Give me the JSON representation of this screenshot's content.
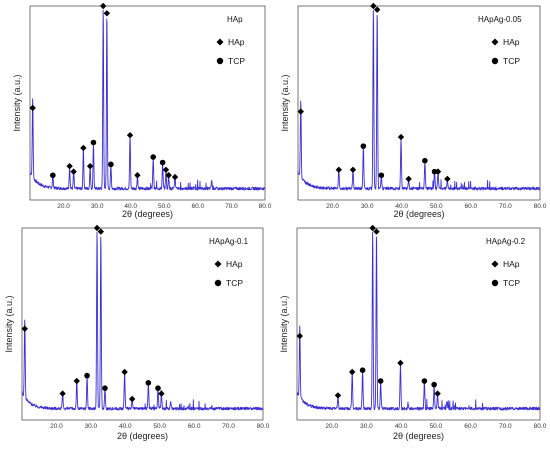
{
  "colors": {
    "pattern": "#3b2fd0",
    "frame": "#555555",
    "marker": "#000000"
  },
  "chart_data": [
    {
      "type": "line",
      "sample_label": "HAp",
      "xlabel": "2θ (degrees)",
      "ylabel": "Intensity (a.u.)",
      "xlim": [
        10,
        80
      ],
      "xticks": [
        20.0,
        30.0,
        40.0,
        50.0,
        60.0,
        70.0,
        80.0
      ],
      "tick_labels": [
        "20.0",
        "30.0",
        "40.0",
        "50.0",
        "60.0",
        "70.0",
        "80.0"
      ],
      "ylim": [
        0,
        100
      ],
      "legend": {
        "items": [
          {
            "symbol": "diamond",
            "label": "HAp"
          },
          {
            "symbol": "circle",
            "label": "TCP"
          }
        ]
      },
      "peaks": [
        {
          "x": 10.8,
          "y": 44,
          "phase": "HAp"
        },
        {
          "x": 16.8,
          "y": 7,
          "phase": "TCP"
        },
        {
          "x": 21.8,
          "y": 12,
          "phase": "HAp"
        },
        {
          "x": 23.0,
          "y": 9,
          "phase": "HAp"
        },
        {
          "x": 25.9,
          "y": 22,
          "phase": "HAp"
        },
        {
          "x": 27.9,
          "y": 12,
          "phase": "HAp"
        },
        {
          "x": 28.9,
          "y": 25,
          "phase": "TCP"
        },
        {
          "x": 31.8,
          "y": 100,
          "phase": "HAp"
        },
        {
          "x": 32.9,
          "y": 96,
          "phase": "HAp"
        },
        {
          "x": 34.1,
          "y": 13,
          "phase": "TCP"
        },
        {
          "x": 39.8,
          "y": 29,
          "phase": "HAp"
        },
        {
          "x": 42.0,
          "y": 7,
          "phase": "HAp"
        },
        {
          "x": 46.7,
          "y": 17,
          "phase": "TCP"
        },
        {
          "x": 49.5,
          "y": 14,
          "phase": "TCP"
        },
        {
          "x": 50.5,
          "y": 10,
          "phase": "HAp"
        },
        {
          "x": 51.3,
          "y": 7,
          "phase": "HAp"
        },
        {
          "x": 53.2,
          "y": 6,
          "phase": "HAp"
        },
        {
          "x": 64.1,
          "y": 4,
          "phase": "HAp"
        }
      ]
    },
    {
      "type": "line",
      "sample_label": "HApAg-0.05",
      "xlabel": "2θ (degrees)",
      "ylabel": "Intensity (a.u.)",
      "xlim": [
        10,
        80
      ],
      "xticks": [
        20.0,
        30.0,
        40.0,
        50.0,
        60.0,
        70.0,
        80.0
      ],
      "tick_labels": [
        "20.0",
        "30.0",
        "40.0",
        "50.0",
        "60.0",
        "70.0",
        "80.0"
      ],
      "ylim": [
        0,
        100
      ],
      "legend": {
        "items": [
          {
            "symbol": "diamond",
            "label": "HAp"
          },
          {
            "symbol": "circle",
            "label": "TCP"
          }
        ]
      },
      "peaks": [
        {
          "x": 10.8,
          "y": 42,
          "phase": "HAp"
        },
        {
          "x": 21.8,
          "y": 10,
          "phase": "HAp"
        },
        {
          "x": 25.9,
          "y": 10,
          "phase": "HAp"
        },
        {
          "x": 28.9,
          "y": 23,
          "phase": "TCP"
        },
        {
          "x": 31.8,
          "y": 100,
          "phase": "HAp"
        },
        {
          "x": 32.9,
          "y": 98,
          "phase": "HAp"
        },
        {
          "x": 34.1,
          "y": 7,
          "phase": "TCP"
        },
        {
          "x": 39.8,
          "y": 28,
          "phase": "HAp"
        },
        {
          "x": 42.0,
          "y": 5,
          "phase": "HAp"
        },
        {
          "x": 46.7,
          "y": 15,
          "phase": "TCP"
        },
        {
          "x": 49.5,
          "y": 9,
          "phase": "TCP"
        },
        {
          "x": 50.5,
          "y": 9,
          "phase": "HAp"
        },
        {
          "x": 53.2,
          "y": 5,
          "phase": "HAp"
        }
      ]
    },
    {
      "type": "line",
      "sample_label": "HApAg-0.1",
      "xlabel": "2θ (degrees)",
      "ylabel": "Intensity (a.u.)",
      "xlim": [
        10,
        80
      ],
      "xticks": [
        20.0,
        30.0,
        40.0,
        50.0,
        60.0,
        70.0,
        80.0
      ],
      "tick_labels": [
        "20.0",
        "30.0",
        "40.0",
        "50.0",
        "60.0",
        "70.0",
        "80.0"
      ],
      "ylim": [
        0,
        100
      ],
      "legend": {
        "items": [
          {
            "symbol": "diamond",
            "label": "HAp"
          },
          {
            "symbol": "circle",
            "label": "TCP"
          }
        ]
      },
      "peaks": [
        {
          "x": 10.8,
          "y": 44,
          "phase": "HAp"
        },
        {
          "x": 21.8,
          "y": 8,
          "phase": "HAp"
        },
        {
          "x": 25.9,
          "y": 15,
          "phase": "HAp"
        },
        {
          "x": 28.9,
          "y": 18,
          "phase": "TCP"
        },
        {
          "x": 31.8,
          "y": 100,
          "phase": "HAp"
        },
        {
          "x": 32.9,
          "y": 98,
          "phase": "HAp"
        },
        {
          "x": 34.1,
          "y": 11,
          "phase": "TCP"
        },
        {
          "x": 39.8,
          "y": 20,
          "phase": "HAp"
        },
        {
          "x": 42.0,
          "y": 5,
          "phase": "HAp"
        },
        {
          "x": 46.7,
          "y": 14,
          "phase": "TCP"
        },
        {
          "x": 49.5,
          "y": 11,
          "phase": "TCP"
        },
        {
          "x": 50.5,
          "y": 8,
          "phase": "HAp"
        },
        {
          "x": 53.2,
          "y": 4,
          "phase": "HAp"
        }
      ]
    },
    {
      "type": "line",
      "sample_label": "HApAg-0.2",
      "xlabel": "2θ (degrees)",
      "ylabel": "Intensity (a.u.)",
      "xlim": [
        10,
        80
      ],
      "xticks": [
        20.0,
        30.0,
        40.0,
        50.0,
        60.0,
        70.0,
        80.0
      ],
      "tick_labels": [
        "20.0",
        "30.0",
        "40.0",
        "50.0",
        "60.0",
        "70.0",
        "80.0"
      ],
      "ylim": [
        0,
        100
      ],
      "legend": {
        "items": [
          {
            "symbol": "diamond",
            "label": "HAp"
          },
          {
            "symbol": "circle",
            "label": "TCP"
          }
        ]
      },
      "peaks": [
        {
          "x": 10.8,
          "y": 40,
          "phase": "HAp"
        },
        {
          "x": 21.8,
          "y": 7,
          "phase": "HAp"
        },
        {
          "x": 25.9,
          "y": 20,
          "phase": "HAp"
        },
        {
          "x": 28.9,
          "y": 21,
          "phase": "TCP"
        },
        {
          "x": 31.8,
          "y": 100,
          "phase": "HAp"
        },
        {
          "x": 32.9,
          "y": 98,
          "phase": "HAp"
        },
        {
          "x": 34.1,
          "y": 15,
          "phase": "TCP"
        },
        {
          "x": 39.8,
          "y": 25,
          "phase": "HAp"
        },
        {
          "x": 42.0,
          "y": 3,
          "phase": "HAp"
        },
        {
          "x": 46.7,
          "y": 15,
          "phase": "TCP"
        },
        {
          "x": 49.5,
          "y": 13,
          "phase": "TCP"
        },
        {
          "x": 50.5,
          "y": 8,
          "phase": "HAp"
        },
        {
          "x": 53.2,
          "y": 4,
          "phase": "HAp"
        }
      ]
    }
  ]
}
